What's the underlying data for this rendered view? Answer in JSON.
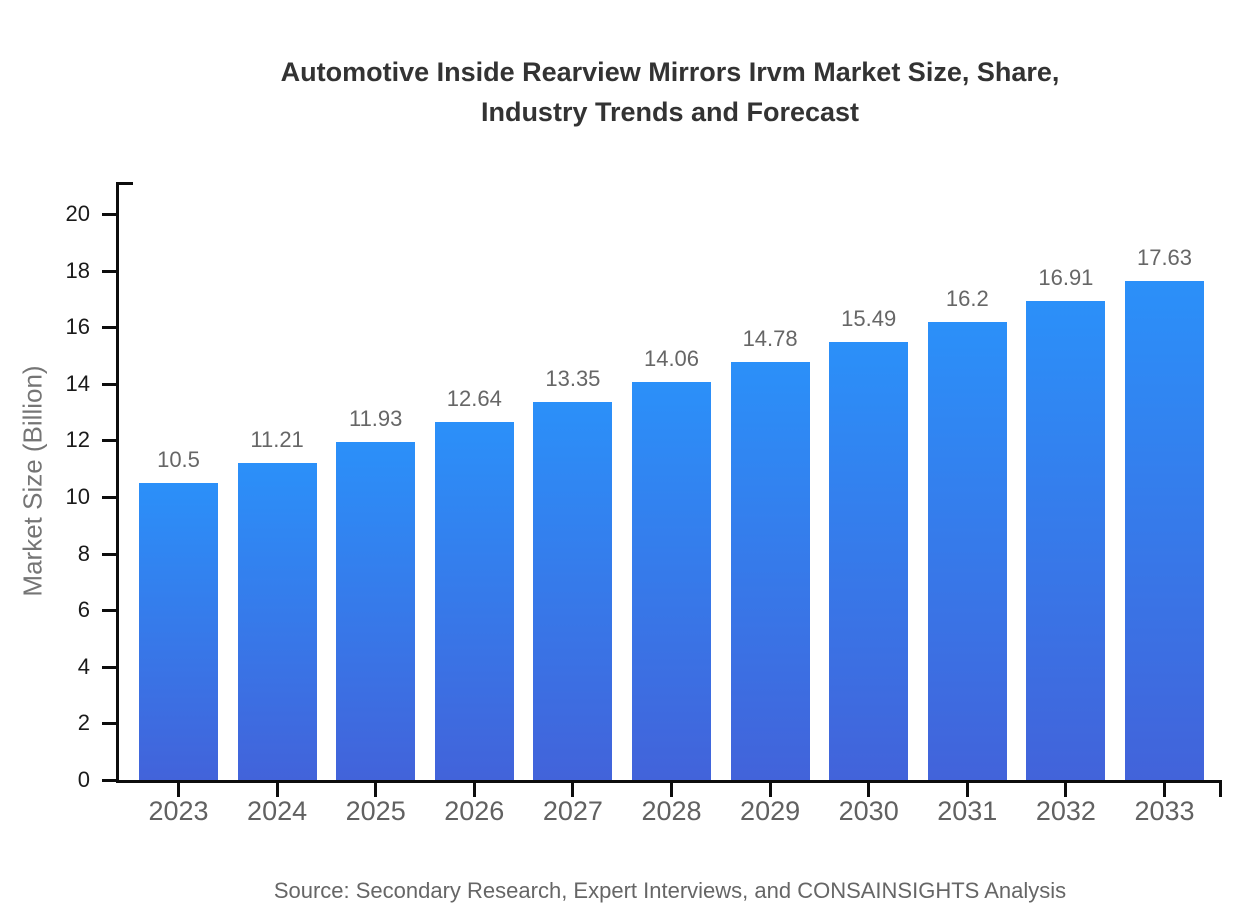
{
  "title_lines": [
    "Automotive Inside Rearview Mirrors Irvm Market Size, Share,",
    "Industry Trends and Forecast"
  ],
  "source_note": "Source: Secondary Research, Expert Interviews, and CONSAINSIGHTS Analysis",
  "chart_data": {
    "type": "bar",
    "title": "Automotive Inside Rearview Mirrors Irvm Market Size, Share, Industry Trends and Forecast",
    "xlabel": "",
    "ylabel": "Market Size (Billion)",
    "categories": [
      "2023",
      "2024",
      "2025",
      "2026",
      "2027",
      "2028",
      "2029",
      "2030",
      "2031",
      "2032",
      "2033"
    ],
    "values": [
      10.5,
      11.21,
      11.93,
      12.64,
      13.35,
      14.06,
      14.78,
      15.49,
      16.2,
      16.91,
      17.63
    ],
    "value_labels": [
      "10.5",
      "11.21",
      "11.93",
      "12.64",
      "13.35",
      "14.06",
      "14.78",
      "15.49",
      "16.2",
      "16.91",
      "17.63"
    ],
    "ylim": [
      0,
      20
    ],
    "yticks": [
      0,
      2,
      4,
      6,
      8,
      10,
      12,
      14,
      16,
      18,
      20
    ],
    "grid": false,
    "legend_position": "none",
    "colors": {
      "bar_gradient_top": "#2B90F9",
      "bar_gradient_bottom": "#4263DA",
      "axis": "#0d0d0d",
      "title_text": "#333333",
      "tick_label_text": "#1a1a1a",
      "category_label_text": "#616161",
      "value_label_text": "#666666",
      "source_text": "#666666"
    }
  }
}
